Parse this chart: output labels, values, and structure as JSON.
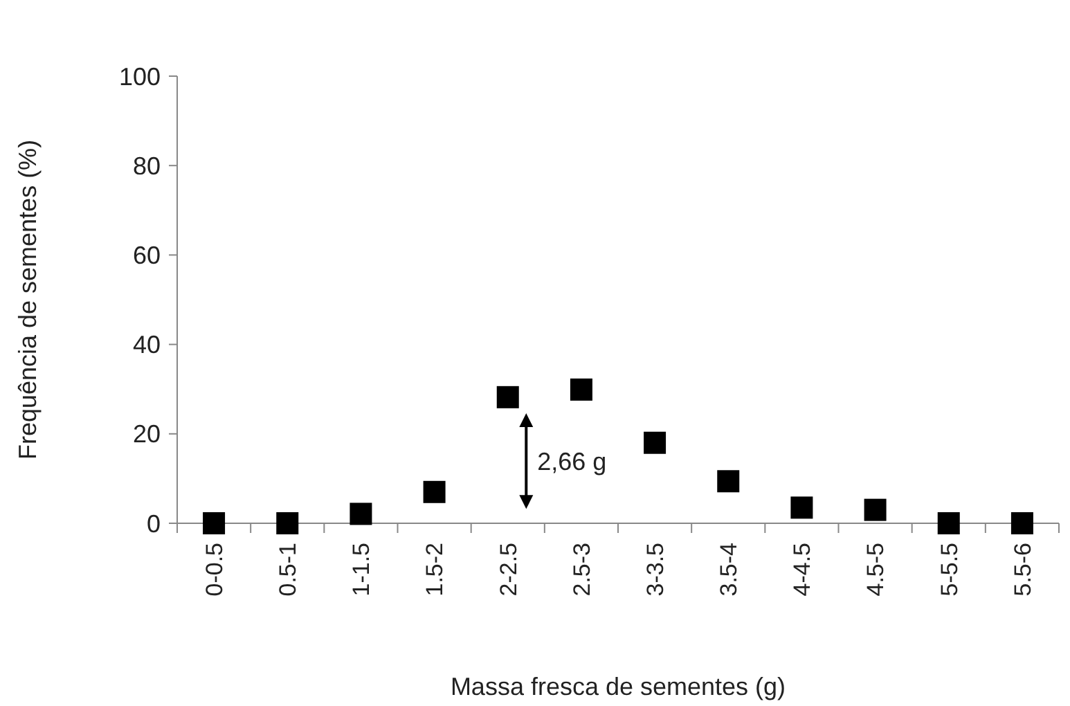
{
  "chart_data": {
    "type": "scatter",
    "xlabel": "Massa fresca de sementes (g)",
    "ylabel": "Frequência de sementes (%)",
    "categories": [
      "0-0.5",
      "0.5-1",
      "1-1.5",
      "1.5-2",
      "2-2.5",
      "2.5-3",
      "3-3.5",
      "3.5-4",
      "4-4.5",
      "4.5-5",
      "5-5.5",
      "5.5-6"
    ],
    "series": [
      {
        "color": "#000000",
        "values": [
          0,
          0,
          2.1,
          7,
          28.2,
          29.9,
          18,
          9.4,
          3.5,
          3,
          0,
          0
        ]
      }
    ],
    "marker": "square",
    "ylim": [
      0,
      100
    ],
    "yticks": [
      0,
      20,
      40,
      60,
      80,
      100
    ],
    "grid": false,
    "annotations": [
      "2,66 g"
    ]
  }
}
